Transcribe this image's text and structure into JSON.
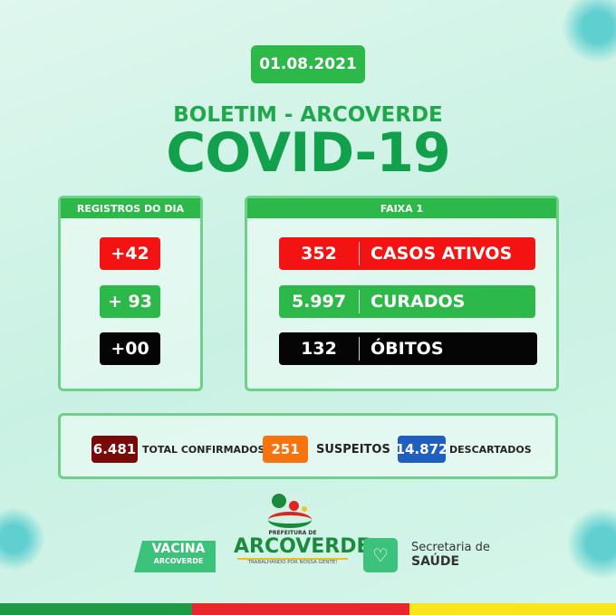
{
  "date": "01.08.2021",
  "subtitle": "BOLETIM - ARCOVERDE",
  "title": "COVID-19",
  "registros": {
    "header": "REGISTROS DO DIA",
    "items": [
      "+42",
      "+ 93",
      "+00"
    ]
  },
  "faixa": {
    "header": "FAIXA 1",
    "items": [
      {
        "value": "352",
        "label": "CASOS ATIVOS"
      },
      {
        "value": "5.997",
        "label": "CURADOS"
      },
      {
        "value": "132",
        "label": "ÓBITOS"
      }
    ]
  },
  "totals": [
    {
      "value": "6.481",
      "label": "TOTAL CONFIRMADOS",
      "color": "#7a0a0a"
    },
    {
      "value": "251",
      "label": "SUSPEITOS",
      "color": "#f7730e"
    },
    {
      "value": "14.872",
      "label": "DESCARTADOS",
      "color": "#1f5fbf"
    }
  ],
  "footer": {
    "vacina": [
      "VACINA",
      "ARCOVERDE"
    ],
    "prefeitura": "PREFEITURA DE",
    "city": "ARCOVERDE",
    "slogan": "TRABALHANDO POR NOSSA GENTE!",
    "secretaria": "Secretaria de",
    "saude": "SAÚDE"
  },
  "colors": {
    "green": "#2db84a",
    "red": "#f41313",
    "yellow": "#f8e51b"
  }
}
